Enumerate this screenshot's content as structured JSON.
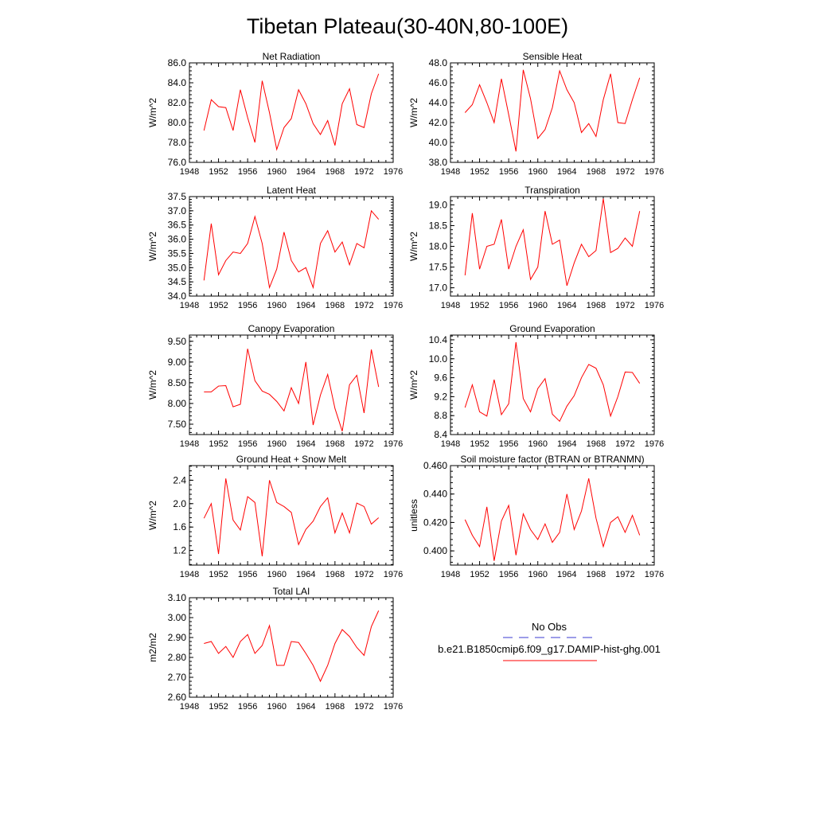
{
  "figure": {
    "title": "Tibetan Plateau(30-40N,80-100E)"
  },
  "legend": {
    "obs_label": "No Obs",
    "obs_color": "#3b3bd1",
    "model_label": "b.e21.B1850cmip6.f09_g17.DAMIP-hist-ghg.001",
    "model_color": "#ff0000"
  },
  "chart_data": [
    {
      "type": "line",
      "title": "Net Radiation",
      "ylabel": "W/m^2",
      "xlim": [
        1948,
        1976
      ],
      "ylim": [
        76.0,
        86.0
      ],
      "x_ticks": [
        1948,
        1952,
        1956,
        1960,
        1964,
        1968,
        1972,
        1976
      ],
      "y_ticks": [
        76.0,
        78.0,
        80.0,
        82.0,
        84.0,
        86.0
      ],
      "y_tick_labels": [
        "76.0",
        "78.0",
        "80.0",
        "82.0",
        "84.0",
        "86.0"
      ],
      "x": [
        1950,
        1951,
        1952,
        1953,
        1954,
        1955,
        1956,
        1957,
        1958,
        1959,
        1960,
        1961,
        1962,
        1963,
        1964,
        1965,
        1966,
        1967,
        1968,
        1969,
        1970,
        1971,
        1972,
        1973,
        1974
      ],
      "series": [
        {
          "color": "#ff0000",
          "values": [
            79.2,
            82.3,
            81.6,
            81.5,
            79.2,
            83.3,
            80.5,
            78.0,
            84.2,
            81.0,
            77.3,
            79.5,
            80.4,
            83.3,
            81.9,
            79.9,
            78.8,
            80.2,
            77.7,
            81.9,
            83.4,
            79.8,
            79.5,
            82.9,
            84.9
          ]
        }
      ]
    },
    {
      "type": "line",
      "title": "Sensible Heat",
      "ylabel": "W/m^2",
      "xlim": [
        1948,
        1976
      ],
      "ylim": [
        38.0,
        48.0
      ],
      "x_ticks": [
        1948,
        1952,
        1956,
        1960,
        1964,
        1968,
        1972,
        1976
      ],
      "y_ticks": [
        38.0,
        40.0,
        42.0,
        44.0,
        46.0,
        48.0
      ],
      "y_tick_labels": [
        "38.0",
        "40.0",
        "42.0",
        "44.0",
        "46.0",
        "48.0"
      ],
      "x": [
        1950,
        1951,
        1952,
        1953,
        1954,
        1955,
        1956,
        1957,
        1958,
        1959,
        1960,
        1961,
        1962,
        1963,
        1964,
        1965,
        1966,
        1967,
        1968,
        1969,
        1970,
        1971,
        1972,
        1973,
        1974
      ],
      "series": [
        {
          "color": "#ff0000",
          "values": [
            43.0,
            43.8,
            45.8,
            44.0,
            42.0,
            46.4,
            42.8,
            39.1,
            47.3,
            44.4,
            40.4,
            41.3,
            43.5,
            47.2,
            45.3,
            44.0,
            41.0,
            41.9,
            40.6,
            44.3,
            46.9,
            42.0,
            41.9,
            44.3,
            46.5
          ]
        }
      ]
    },
    {
      "type": "line",
      "title": "Latent Heat",
      "ylabel": "W/m^2",
      "xlim": [
        1948,
        1976
      ],
      "ylim": [
        34.0,
        37.5
      ],
      "x_ticks": [
        1948,
        1952,
        1956,
        1960,
        1964,
        1968,
        1972,
        1976
      ],
      "y_ticks": [
        34.0,
        34.5,
        35.0,
        35.5,
        36.0,
        36.5,
        37.0,
        37.5
      ],
      "y_tick_labels": [
        "34.0",
        "34.5",
        "35.0",
        "35.5",
        "36.0",
        "36.5",
        "37.0",
        "37.5"
      ],
      "x": [
        1950,
        1951,
        1952,
        1953,
        1954,
        1955,
        1956,
        1957,
        1958,
        1959,
        1960,
        1961,
        1962,
        1963,
        1964,
        1965,
        1966,
        1967,
        1968,
        1969,
        1970,
        1971,
        1972,
        1973,
        1974
      ],
      "series": [
        {
          "color": "#ff0000",
          "values": [
            34.55,
            36.55,
            34.75,
            35.25,
            35.55,
            35.5,
            35.85,
            36.8,
            35.85,
            34.3,
            34.95,
            36.25,
            35.25,
            34.85,
            35.0,
            34.3,
            35.85,
            36.3,
            35.55,
            35.9,
            35.1,
            35.85,
            35.7,
            37.0,
            36.7
          ]
        }
      ]
    },
    {
      "type": "line",
      "title": "Transpiration",
      "ylabel": "W/m^2",
      "xlim": [
        1948,
        1976
      ],
      "ylim": [
        16.8,
        19.2
      ],
      "x_ticks": [
        1948,
        1952,
        1956,
        1960,
        1964,
        1968,
        1972,
        1976
      ],
      "y_ticks": [
        17.0,
        17.5,
        18.0,
        18.5,
        19.0
      ],
      "y_tick_labels": [
        "17.0",
        "17.5",
        "18.0",
        "18.5",
        "19.0"
      ],
      "x": [
        1950,
        1951,
        1952,
        1953,
        1954,
        1955,
        1956,
        1957,
        1958,
        1959,
        1960,
        1961,
        1962,
        1963,
        1964,
        1965,
        1966,
        1967,
        1968,
        1969,
        1970,
        1971,
        1972,
        1973,
        1974
      ],
      "series": [
        {
          "color": "#ff0000",
          "values": [
            17.3,
            18.8,
            17.45,
            18.0,
            18.05,
            18.65,
            17.45,
            18.0,
            18.4,
            17.2,
            17.5,
            18.85,
            18.05,
            18.15,
            17.05,
            17.6,
            18.05,
            17.75,
            17.9,
            19.15,
            17.85,
            17.95,
            18.2,
            18.0,
            18.85
          ]
        }
      ]
    },
    {
      "type": "line",
      "title": "Canopy Evaporation",
      "ylabel": "W/m^2",
      "xlim": [
        1948,
        1976
      ],
      "ylim": [
        7.25,
        9.65
      ],
      "x_ticks": [
        1948,
        1952,
        1956,
        1960,
        1964,
        1968,
        1972,
        1976
      ],
      "y_ticks": [
        7.5,
        8.0,
        8.5,
        9.0,
        9.5
      ],
      "y_tick_labels": [
        "7.50",
        "8.00",
        "8.50",
        "9.00",
        "9.50"
      ],
      "x": [
        1950,
        1951,
        1952,
        1953,
        1954,
        1955,
        1956,
        1957,
        1958,
        1959,
        1960,
        1961,
        1962,
        1963,
        1964,
        1965,
        1966,
        1967,
        1968,
        1969,
        1970,
        1971,
        1972,
        1973,
        1974
      ],
      "series": [
        {
          "color": "#ff0000",
          "values": [
            8.28,
            8.28,
            8.42,
            8.43,
            7.92,
            7.98,
            9.32,
            8.55,
            8.3,
            8.22,
            8.05,
            7.82,
            8.38,
            8.0,
            9.0,
            7.48,
            8.2,
            8.7,
            7.88,
            7.33,
            8.45,
            8.68,
            7.77,
            9.3,
            8.4
          ]
        }
      ]
    },
    {
      "type": "line",
      "title": "Ground Evaporation",
      "ylabel": "W/m^2",
      "xlim": [
        1948,
        1976
      ],
      "ylim": [
        8.4,
        10.5
      ],
      "x_ticks": [
        1948,
        1952,
        1956,
        1960,
        1964,
        1968,
        1972,
        1976
      ],
      "y_ticks": [
        8.4,
        8.8,
        9.2,
        9.6,
        10.0,
        10.4
      ],
      "y_tick_labels": [
        "8.4",
        "8.8",
        "9.2",
        "9.6",
        "10.0",
        "10.4"
      ],
      "x": [
        1950,
        1951,
        1952,
        1953,
        1954,
        1955,
        1956,
        1957,
        1958,
        1959,
        1960,
        1961,
        1962,
        1963,
        1964,
        1965,
        1966,
        1967,
        1968,
        1969,
        1970,
        1971,
        1972,
        1973,
        1974
      ],
      "series": [
        {
          "color": "#ff0000",
          "values": [
            8.97,
            9.45,
            8.88,
            8.79,
            9.56,
            8.82,
            9.05,
            10.35,
            9.16,
            8.88,
            9.37,
            9.58,
            8.83,
            8.68,
            9.0,
            9.22,
            9.6,
            9.88,
            9.8,
            9.45,
            8.79,
            9.2,
            9.72,
            9.71,
            9.48
          ]
        }
      ]
    },
    {
      "type": "line",
      "title": "Ground Heat + Snow Melt",
      "ylabel": "W/m^2",
      "xlim": [
        1948,
        1976
      ],
      "ylim": [
        0.95,
        2.65
      ],
      "x_ticks": [
        1948,
        1952,
        1956,
        1960,
        1964,
        1968,
        1972,
        1976
      ],
      "y_ticks": [
        1.2,
        1.6,
        2.0,
        2.4
      ],
      "y_tick_labels": [
        "1.2",
        "1.6",
        "2.0",
        "2.4"
      ],
      "x": [
        1950,
        1951,
        1952,
        1953,
        1954,
        1955,
        1956,
        1957,
        1958,
        1959,
        1960,
        1961,
        1962,
        1963,
        1964,
        1965,
        1966,
        1967,
        1968,
        1969,
        1970,
        1971,
        1972,
        1973,
        1974
      ],
      "series": [
        {
          "color": "#ff0000",
          "values": [
            1.75,
            2.0,
            1.14,
            2.43,
            1.72,
            1.55,
            2.12,
            2.02,
            1.1,
            2.4,
            2.02,
            1.95,
            1.85,
            1.3,
            1.56,
            1.7,
            1.95,
            2.1,
            1.5,
            1.84,
            1.5,
            2.01,
            1.95,
            1.65,
            1.76
          ]
        }
      ]
    },
    {
      "type": "line",
      "title": "Soil moisture factor (BTRAN or BTRANMN)",
      "ylabel": "unitless",
      "xlim": [
        1948,
        1976
      ],
      "ylim": [
        0.39,
        0.46
      ],
      "x_ticks": [
        1948,
        1952,
        1956,
        1960,
        1964,
        1968,
        1972,
        1976
      ],
      "y_ticks": [
        0.4,
        0.42,
        0.44,
        0.46
      ],
      "y_tick_labels": [
        "0.400",
        "0.420",
        "0.440",
        "0.460"
      ],
      "x": [
        1950,
        1951,
        1952,
        1953,
        1954,
        1955,
        1956,
        1957,
        1958,
        1959,
        1960,
        1961,
        1962,
        1963,
        1964,
        1965,
        1966,
        1967,
        1968,
        1969,
        1970,
        1971,
        1972,
        1973,
        1974
      ],
      "series": [
        {
          "color": "#ff0000",
          "values": [
            0.422,
            0.411,
            0.403,
            0.431,
            0.393,
            0.421,
            0.432,
            0.397,
            0.426,
            0.415,
            0.408,
            0.419,
            0.406,
            0.413,
            0.44,
            0.415,
            0.428,
            0.451,
            0.423,
            0.403,
            0.42,
            0.424,
            0.413,
            0.425,
            0.411
          ]
        }
      ]
    },
    {
      "type": "line",
      "title": "Total LAI",
      "ylabel": "m2/m2",
      "xlim": [
        1948,
        1976
      ],
      "ylim": [
        2.6,
        3.1
      ],
      "x_ticks": [
        1948,
        1952,
        1956,
        1960,
        1964,
        1968,
        1972,
        1976
      ],
      "y_ticks": [
        2.6,
        2.7,
        2.8,
        2.9,
        3.0,
        3.1
      ],
      "y_tick_labels": [
        "2.60",
        "2.70",
        "2.80",
        "2.90",
        "3.00",
        "3.10"
      ],
      "x": [
        1950,
        1951,
        1952,
        1953,
        1954,
        1955,
        1956,
        1957,
        1958,
        1959,
        1960,
        1961,
        1962,
        1963,
        1964,
        1965,
        1966,
        1967,
        1968,
        1969,
        1970,
        1971,
        1972,
        1973,
        1974
      ],
      "series": [
        {
          "color": "#ff0000",
          "values": [
            2.87,
            2.88,
            2.82,
            2.855,
            2.8,
            2.88,
            2.915,
            2.82,
            2.86,
            2.96,
            2.76,
            2.76,
            2.88,
            2.875,
            2.82,
            2.76,
            2.68,
            2.76,
            2.87,
            2.94,
            2.905,
            2.85,
            2.81,
            2.955,
            3.035
          ]
        }
      ]
    }
  ]
}
